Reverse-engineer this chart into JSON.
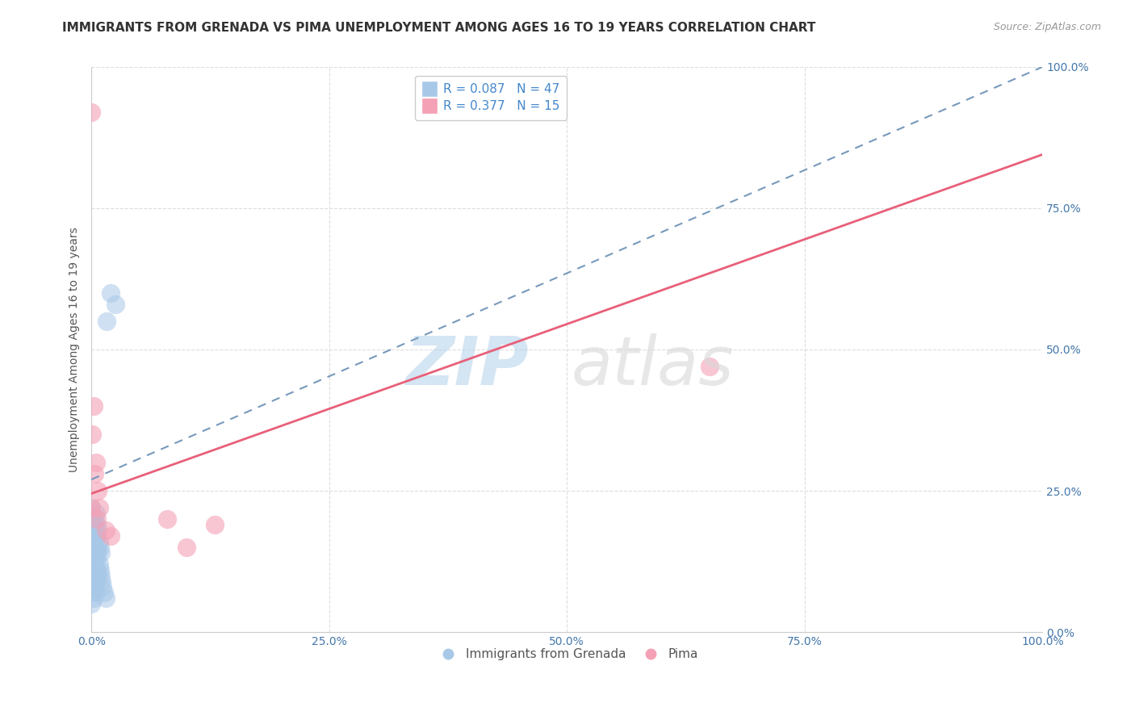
{
  "title": "IMMIGRANTS FROM GRENADA VS PIMA UNEMPLOYMENT AMONG AGES 16 TO 19 YEARS CORRELATION CHART",
  "source": "Source: ZipAtlas.com",
  "ylabel": "Unemployment Among Ages 16 to 19 years",
  "xlim": [
    0.0,
    1.0
  ],
  "ylim": [
    0.0,
    1.0
  ],
  "xticks": [
    0.0,
    0.25,
    0.5,
    0.75,
    1.0
  ],
  "yticks": [
    0.0,
    0.25,
    0.5,
    0.75,
    1.0
  ],
  "xticklabels": [
    "0.0%",
    "25.0%",
    "50.0%",
    "75.0%",
    "100.0%"
  ],
  "yticklabels": [
    "0.0%",
    "25.0%",
    "50.0%",
    "75.0%",
    "100.0%"
  ],
  "blue_color": "#a8c8e8",
  "pink_color": "#f4a0b5",
  "blue_line_color": "#7799bb",
  "pink_line_color": "#e8607a",
  "legend_blue_R": "R = 0.087",
  "legend_blue_N": "N = 47",
  "legend_pink_R": "R = 0.377",
  "legend_pink_N": "N = 15",
  "blue_points_x": [
    0.0,
    0.0,
    0.0,
    0.0,
    0.0,
    0.0,
    0.0,
    0.001,
    0.001,
    0.001,
    0.001,
    0.002,
    0.002,
    0.002,
    0.002,
    0.002,
    0.003,
    0.003,
    0.003,
    0.003,
    0.004,
    0.004,
    0.004,
    0.004,
    0.005,
    0.005,
    0.005,
    0.005,
    0.006,
    0.006,
    0.006,
    0.007,
    0.007,
    0.007,
    0.008,
    0.008,
    0.009,
    0.009,
    0.01,
    0.01,
    0.011,
    0.012,
    0.013,
    0.015,
    0.016,
    0.02,
    0.025
  ],
  "blue_points_y": [
    0.05,
    0.08,
    0.1,
    0.12,
    0.15,
    0.18,
    0.22,
    0.07,
    0.11,
    0.14,
    0.17,
    0.06,
    0.09,
    0.13,
    0.16,
    0.2,
    0.08,
    0.12,
    0.15,
    0.19,
    0.07,
    0.1,
    0.14,
    0.18,
    0.09,
    0.13,
    0.17,
    0.21,
    0.11,
    0.15,
    0.19,
    0.1,
    0.14,
    0.18,
    0.12,
    0.16,
    0.11,
    0.15,
    0.1,
    0.14,
    0.09,
    0.08,
    0.07,
    0.06,
    0.55,
    0.6,
    0.58
  ],
  "pink_points_x": [
    0.0,
    0.0,
    0.001,
    0.002,
    0.003,
    0.005,
    0.006,
    0.007,
    0.008,
    0.015,
    0.02,
    0.08,
    0.1,
    0.13,
    0.65
  ],
  "pink_points_y": [
    0.92,
    0.22,
    0.35,
    0.4,
    0.28,
    0.3,
    0.2,
    0.25,
    0.22,
    0.18,
    0.17,
    0.2,
    0.15,
    0.19,
    0.47
  ],
  "blue_line_y_intercept": 0.27,
  "blue_line_slope": 0.73,
  "pink_line_y_intercept": 0.245,
  "pink_line_slope": 0.6,
  "bg_color": "#ffffff",
  "grid_color": "#dddddd",
  "title_fontsize": 11,
  "axis_fontsize": 10,
  "tick_fontsize": 10,
  "legend_fontsize": 11
}
